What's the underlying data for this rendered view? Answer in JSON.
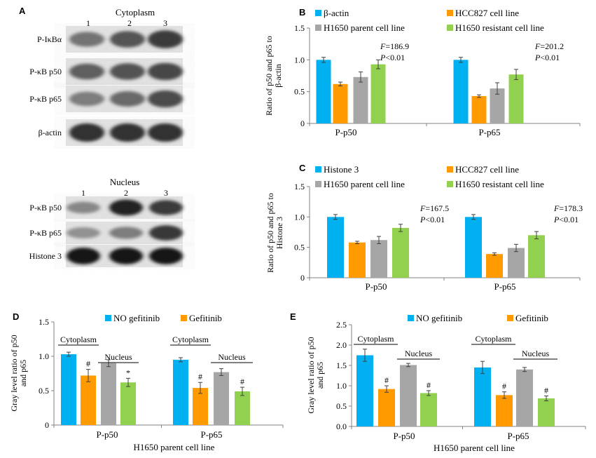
{
  "colors": {
    "blue": "#00b0f0",
    "orange": "#ff9a00",
    "gray": "#a6a6a6",
    "green": "#92d050",
    "axis": "#808080"
  },
  "blots": {
    "A": {
      "label": "A",
      "cytoplasm": {
        "title": "Cytoplasm",
        "lanes": [
          "1",
          "2",
          "3"
        ],
        "rows": [
          {
            "label": "P-IκBα",
            "intensity": [
              0.5,
              0.65,
              0.78
            ]
          },
          {
            "label": "P-κB p50",
            "intensity": [
              0.6,
              0.66,
              0.72
            ]
          },
          {
            "label": "P-κB p65",
            "intensity": [
              0.45,
              0.55,
              0.7
            ]
          },
          {
            "label": "β-actin",
            "intensity": [
              0.82,
              0.82,
              0.82
            ]
          }
        ]
      },
      "nucleus": {
        "title": "Nucleus",
        "lanes": [
          "1",
          "2",
          "3"
        ],
        "rows": [
          {
            "label": "P-κB p50",
            "intensity": [
              0.4,
              0.9,
              0.78
            ]
          },
          {
            "label": "P-κB p65",
            "intensity": [
              0.35,
              0.45,
              0.8
            ]
          },
          {
            "label": "Histone 3",
            "intensity": [
              0.95,
              0.95,
              0.95
            ]
          }
        ]
      }
    }
  },
  "chart_data": [
    {
      "id": "B",
      "label": "B",
      "type": "bar",
      "ylabel": "Ratio of p50 and p65 to β-actin",
      "ylim": [
        0,
        1.5
      ],
      "yticks": [
        "0",
        "0.5",
        "1.0",
        "1.5"
      ],
      "categories": [
        "P-p50",
        "P-p65"
      ],
      "series": [
        {
          "name": "β-actin",
          "color": "blue",
          "values": [
            1.0,
            1.0
          ],
          "errors": [
            0.04,
            0.04
          ]
        },
        {
          "name": "HCC827 cell line",
          "color": "orange",
          "values": [
            0.62,
            0.43
          ],
          "errors": [
            0.03,
            0.02
          ]
        },
        {
          "name": "H1650 parent cell line",
          "color": "gray",
          "values": [
            0.73,
            0.55
          ],
          "errors": [
            0.08,
            0.09
          ]
        },
        {
          "name": "H1650 resistant cell line",
          "color": "green",
          "values": [
            0.93,
            0.77
          ],
          "errors": [
            0.07,
            0.08
          ]
        }
      ],
      "stats": [
        {
          "f_label": "F",
          "f_value": "=186.9",
          "p_label": "P",
          "p_value": "<0.01"
        },
        {
          "f_label": "F",
          "f_value": "=201.2",
          "p_label": "P",
          "p_value": "<0.01"
        }
      ]
    },
    {
      "id": "C",
      "label": "C",
      "type": "bar",
      "ylabel": "Ratio of p50 and p65 to Histone 3",
      "ylim": [
        0,
        1.5
      ],
      "yticks": [
        "0",
        "0.5",
        "1.0",
        "1.5"
      ],
      "categories": [
        "P-p50",
        "P-p65"
      ],
      "series": [
        {
          "name": "Histone 3",
          "color": "blue",
          "values": [
            1.0,
            1.0
          ],
          "errors": [
            0.04,
            0.04
          ]
        },
        {
          "name": "HCC827 cell line",
          "color": "orange",
          "values": [
            0.58,
            0.39
          ],
          "errors": [
            0.02,
            0.02
          ]
        },
        {
          "name": "H1650 parent cell line",
          "color": "gray",
          "values": [
            0.62,
            0.49
          ],
          "errors": [
            0.06,
            0.06
          ]
        },
        {
          "name": "H1650 resistant cell line",
          "color": "green",
          "values": [
            0.82,
            0.7
          ],
          "errors": [
            0.06,
            0.06
          ]
        }
      ],
      "stats": [
        {
          "f_label": "F",
          "f_value": "=167.5",
          "p_label": "P",
          "p_value": "<0.01"
        },
        {
          "f_label": "F",
          "f_value": "=178.3",
          "p_label": "P",
          "p_value": "<0.01"
        }
      ]
    },
    {
      "id": "D",
      "label": "D",
      "type": "bar",
      "ylabel": "Gray level ratio of p50 and p65",
      "xlabel": "H1650 parent cell line",
      "ylim": [
        0,
        1.5
      ],
      "yticks": [
        "0",
        "0.5",
        "1.0",
        "1.5"
      ],
      "categories": [
        "P-p50",
        "P-p65"
      ],
      "group_labels": [
        "Cytoplasm",
        "Nucleus"
      ],
      "series": [
        {
          "name": "NO gefitinib",
          "color": "blue",
          "values": [
            1.03,
            0.95
          ],
          "errors": [
            0.03,
            0.03
          ]
        },
        {
          "name": "Gefitinib",
          "color": "orange",
          "values": [
            0.72,
            0.54
          ],
          "errors": [
            0.09,
            0.08
          ]
        },
        {
          "name": "",
          "color": "gray",
          "values": [
            0.9,
            0.77
          ],
          "errors": [
            0.05,
            0.05
          ]
        },
        {
          "name": "",
          "color": "green",
          "values": [
            0.62,
            0.49
          ],
          "errors": [
            0.06,
            0.06
          ]
        }
      ],
      "marks": [
        [
          "",
          "#",
          "",
          "*"
        ],
        [
          "",
          "#",
          "",
          "#"
        ]
      ]
    },
    {
      "id": "E",
      "label": "E",
      "type": "bar",
      "ylabel": "Gray level ratio of p50 and p65",
      "xlabel": "H1650 parent cell line",
      "ylim": [
        0,
        2.5
      ],
      "yticks": [
        "0.0",
        "0.5",
        "1.0",
        "1.5",
        "2.0",
        "2.5"
      ],
      "categories": [
        "P-p50",
        "P-p65"
      ],
      "group_labels": [
        "Cytoplasm",
        "Nucleus"
      ],
      "series": [
        {
          "name": "NO gefitinib",
          "color": "blue",
          "values": [
            1.75,
            1.45
          ],
          "errors": [
            0.15,
            0.15
          ]
        },
        {
          "name": "Gefitinib",
          "color": "orange",
          "values": [
            0.92,
            0.77
          ],
          "errors": [
            0.08,
            0.08
          ]
        },
        {
          "name": "",
          "color": "gray",
          "values": [
            1.51,
            1.4
          ],
          "errors": [
            0.04,
            0.05
          ]
        },
        {
          "name": "",
          "color": "green",
          "values": [
            0.82,
            0.69
          ],
          "errors": [
            0.06,
            0.06
          ]
        }
      ],
      "marks": [
        [
          "",
          "#",
          "",
          "#"
        ],
        [
          "",
          "#",
          "",
          "#"
        ]
      ]
    }
  ]
}
